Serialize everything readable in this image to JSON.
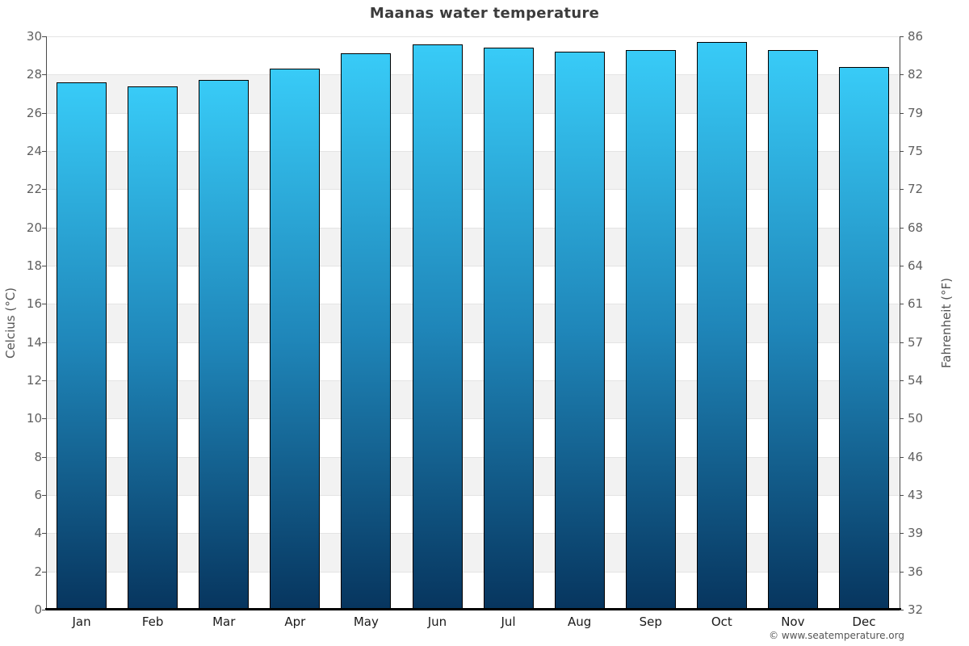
{
  "page": {
    "footer": "© www.seatemperature.org"
  },
  "chart_data": {
    "type": "bar",
    "title": "Maanas water temperature",
    "categories": [
      "Jan",
      "Feb",
      "Mar",
      "Apr",
      "May",
      "Jun",
      "Jul",
      "Aug",
      "Sep",
      "Oct",
      "Nov",
      "Dec"
    ],
    "series": [
      {
        "name": "Water temperature",
        "unit": "°C",
        "values": [
          27.6,
          27.4,
          27.7,
          28.3,
          29.1,
          29.6,
          29.4,
          29.2,
          29.3,
          29.7,
          29.3,
          28.4
        ]
      }
    ],
    "ylabel_left": "Celcius (°C)",
    "ylabel_right": "Fahrenheit (°F)",
    "ylim": [
      0,
      30
    ],
    "ytick_step": 2,
    "yticks_left": [
      30,
      28,
      26,
      24,
      22,
      20,
      18,
      16,
      14,
      12,
      10,
      8,
      6,
      4,
      2,
      0
    ],
    "yticks_right": [
      86,
      82,
      79,
      75,
      72,
      68,
      64,
      61,
      57,
      54,
      50,
      46,
      43,
      39,
      36,
      32
    ],
    "legend": "none",
    "grid": "alternating-horizontal-bands",
    "colors": {
      "bar_top": "#38CBF7",
      "bar_mid": "#1F86B9",
      "bar_bottom": "#07355E",
      "bar_border": "#000000",
      "band_gray": "#F2F2F2",
      "band_white": "#FFFFFF",
      "gridline": "#E4E4E4",
      "axis_line": "#4A4A4A",
      "x_axis_line": "#000000",
      "title_color": "#3C3C3C",
      "tick_label_color": "#606060",
      "month_label_color": "#1A1A1A",
      "axis_title_color": "#555555",
      "footer_color": "#555555"
    }
  }
}
